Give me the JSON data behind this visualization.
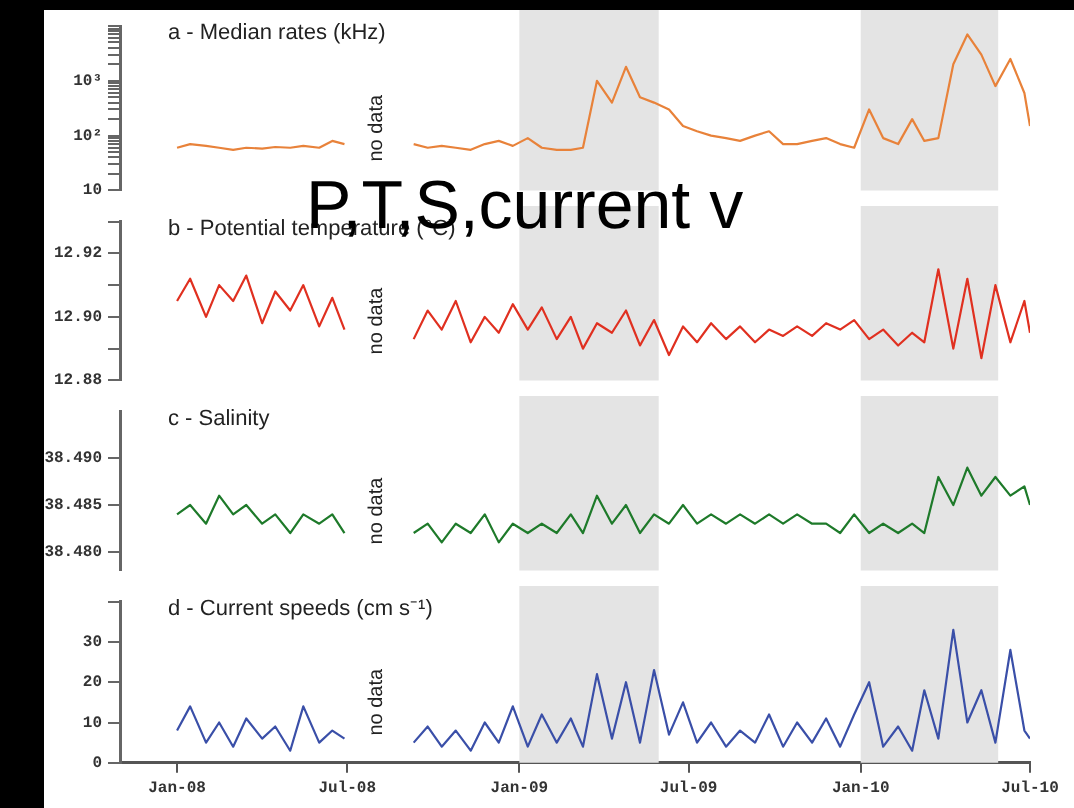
{
  "chart_data": [
    {
      "type": "line",
      "title": "a - Median rates (kHz)",
      "log": "y",
      "color": "#e8823a",
      "tick_labels": "y",
      "xlim": [
        "2007-11-01",
        "2010-07-01"
      ],
      "subtitle": "P,T,S,current v",
      "annotations": [
        "no data"
      ],
      "bands": [
        {
          "axis": "x",
          "from": "2009-01-01",
          "to": "2009-05-30",
          "color": "#e4e4e4"
        },
        {
          "axis": "x",
          "from": "2010-01-01",
          "to": "2010-05-28",
          "color": "#e4e4e4"
        }
      ],
      "ylim": [
        10,
        10000
      ],
      "yticks": [
        10,
        {
          "value": 20,
          "label": null
        },
        {
          "value": 30,
          "label": null
        },
        {
          "value": 40,
          "label": null
        },
        {
          "value": 50,
          "label": null
        },
        {
          "value": 60,
          "label": null
        },
        {
          "value": 70,
          "label": null
        },
        {
          "value": 80,
          "label": null
        },
        {
          "value": 90,
          "label": null
        },
        {
          "value": 100,
          "label": "10²"
        },
        {
          "value": 200,
          "label": null
        },
        {
          "value": 300,
          "label": null
        },
        {
          "value": 400,
          "label": null
        },
        {
          "value": 500,
          "label": null
        },
        {
          "value": 600,
          "label": null
        },
        {
          "value": 700,
          "label": null
        },
        {
          "value": 800,
          "label": null
        },
        {
          "value": 900,
          "label": null
        },
        {
          "value": 1000,
          "label": "10³"
        },
        {
          "value": 2000,
          "label": null
        },
        {
          "value": 3000,
          "label": null
        },
        {
          "value": 4000,
          "label": null
        },
        {
          "value": 5000,
          "label": null
        },
        {
          "value": 6000,
          "label": null
        },
        {
          "value": 7000,
          "label": null
        },
        {
          "value": 8000,
          "label": null
        },
        {
          "value": 9000,
          "label": null
        },
        {
          "value": 10000,
          "label": null
        }
      ],
      "x": [
        "2008-01-01",
        "2008-01-15",
        "2008-02-01",
        "2008-02-15",
        "2008-03-01",
        "2008-03-15",
        "2008-04-01",
        "2008-04-15",
        "2008-05-01",
        "2008-05-15",
        "2008-06-01",
        "2008-06-15",
        "2008-06-28",
        "2008-08-01",
        "2008-09-10",
        "2008-09-25",
        "2008-10-10",
        "2008-10-25",
        "2008-11-10",
        "2008-11-25",
        "2008-12-10",
        "2008-12-25",
        "2009-01-10",
        "2009-01-25",
        "2009-02-10",
        "2009-02-25",
        "2009-03-10",
        "2009-03-25",
        "2009-04-10",
        "2009-04-25",
        "2009-05-10",
        "2009-05-25",
        "2009-06-10",
        "2009-06-25",
        "2009-07-10",
        "2009-07-25",
        "2009-08-10",
        "2009-08-25",
        "2009-09-10",
        "2009-09-25",
        "2009-10-10",
        "2009-10-25",
        "2009-11-10",
        "2009-11-25",
        "2009-12-10",
        "2009-12-25",
        "2010-01-10",
        "2010-01-25",
        "2010-02-10",
        "2010-02-25",
        "2010-03-10",
        "2010-03-25",
        "2010-04-10",
        "2010-04-25",
        "2010-05-10",
        "2010-05-25",
        "2010-06-10",
        "2010-06-25",
        "2010-07-01"
      ],
      "values": [
        60,
        70,
        65,
        60,
        55,
        60,
        58,
        62,
        60,
        65,
        60,
        80,
        70,
        null,
        70,
        60,
        65,
        60,
        55,
        70,
        80,
        65,
        90,
        60,
        55,
        55,
        60,
        1000,
        400,
        1800,
        500,
        400,
        300,
        150,
        120,
        100,
        90,
        80,
        100,
        120,
        70,
        70,
        80,
        90,
        70,
        60,
        300,
        90,
        70,
        200,
        80,
        90,
        2000,
        7000,
        3000,
        800,
        2500,
        600,
        150
      ]
    },
    {
      "type": "line",
      "title": "b - Potential temperature (°C)",
      "color": "#e03020",
      "tick_labels": "y",
      "annotations": [
        "no data"
      ],
      "bands": [
        {
          "axis": "x",
          "from": "2009-01-01",
          "to": "2009-05-30",
          "color": "#e4e4e4"
        },
        {
          "axis": "x",
          "from": "2010-01-01",
          "to": "2010-05-28",
          "color": "#e4e4e4"
        }
      ],
      "xlim": [
        "2007-11-01",
        "2010-07-01"
      ],
      "ylim": [
        12.88,
        12.93
      ],
      "yticks": [
        {
          "value": 12.88,
          "label": "12.88"
        },
        {
          "value": 12.89,
          "label": null
        },
        {
          "value": 12.9,
          "label": "12.90"
        },
        {
          "value": 12.91,
          "label": null
        },
        12.92,
        {
          "value": 12.93,
          "label": null
        }
      ],
      "x": [
        "2008-01-01",
        "2008-01-15",
        "2008-02-01",
        "2008-02-15",
        "2008-03-01",
        "2008-03-15",
        "2008-04-01",
        "2008-04-15",
        "2008-05-01",
        "2008-05-15",
        "2008-06-01",
        "2008-06-15",
        "2008-06-28",
        "2008-08-01",
        "2008-09-10",
        "2008-09-25",
        "2008-10-10",
        "2008-10-25",
        "2008-11-10",
        "2008-11-25",
        "2008-12-10",
        "2008-12-25",
        "2009-01-10",
        "2009-01-25",
        "2009-02-10",
        "2009-02-25",
        "2009-03-10",
        "2009-03-25",
        "2009-04-10",
        "2009-04-25",
        "2009-05-10",
        "2009-05-25",
        "2009-06-10",
        "2009-06-25",
        "2009-07-10",
        "2009-07-25",
        "2009-08-10",
        "2009-08-25",
        "2009-09-10",
        "2009-09-25",
        "2009-10-10",
        "2009-10-25",
        "2009-11-10",
        "2009-11-25",
        "2009-12-10",
        "2009-12-25",
        "2010-01-10",
        "2010-01-25",
        "2010-02-10",
        "2010-02-25",
        "2010-03-10",
        "2010-03-25",
        "2010-04-10",
        "2010-04-25",
        "2010-05-10",
        "2010-05-25",
        "2010-06-10",
        "2010-06-25",
        "2010-07-01"
      ],
      "values": [
        12.905,
        12.912,
        12.9,
        12.91,
        12.905,
        12.913,
        12.898,
        12.908,
        12.902,
        12.91,
        12.897,
        12.906,
        12.896,
        null,
        12.893,
        12.902,
        12.896,
        12.905,
        12.892,
        12.9,
        12.895,
        12.904,
        12.896,
        12.903,
        12.893,
        12.9,
        12.89,
        12.898,
        12.895,
        12.902,
        12.891,
        12.899,
        12.888,
        12.897,
        12.892,
        12.898,
        12.893,
        12.897,
        12.892,
        12.896,
        12.894,
        12.897,
        12.894,
        12.898,
        12.896,
        12.899,
        12.893,
        12.896,
        12.891,
        12.895,
        12.892,
        12.915,
        12.89,
        12.912,
        12.887,
        12.91,
        12.892,
        12.905,
        12.895
      ]
    },
    {
      "type": "line",
      "title": "c - Salinity",
      "color": "#1e7a2a",
      "tick_labels": "y",
      "annotations": [
        "no data"
      ],
      "bands": [
        {
          "axis": "x",
          "from": "2009-01-01",
          "to": "2009-05-30",
          "color": "#e4e4e4"
        },
        {
          "axis": "x",
          "from": "2010-01-01",
          "to": "2010-05-28",
          "color": "#e4e4e4"
        }
      ],
      "xlim": [
        "2007-11-01",
        "2010-07-01"
      ],
      "ylim": [
        38.478,
        38.495
      ],
      "yticks": [
        {
          "value": 38.48,
          "label": "38.480"
        },
        38.485,
        {
          "value": 38.49,
          "label": "38.490"
        }
      ],
      "x": [
        "2008-01-01",
        "2008-01-15",
        "2008-02-01",
        "2008-02-15",
        "2008-03-01",
        "2008-03-15",
        "2008-04-01",
        "2008-04-15",
        "2008-05-01",
        "2008-05-15",
        "2008-06-01",
        "2008-06-15",
        "2008-06-28",
        "2008-08-01",
        "2008-09-10",
        "2008-09-25",
        "2008-10-10",
        "2008-10-25",
        "2008-11-10",
        "2008-11-25",
        "2008-12-10",
        "2008-12-25",
        "2009-01-10",
        "2009-01-25",
        "2009-02-10",
        "2009-02-25",
        "2009-03-10",
        "2009-03-25",
        "2009-04-10",
        "2009-04-25",
        "2009-05-10",
        "2009-05-25",
        "2009-06-10",
        "2009-06-25",
        "2009-07-10",
        "2009-07-25",
        "2009-08-10",
        "2009-08-25",
        "2009-09-10",
        "2009-09-25",
        "2009-10-10",
        "2009-10-25",
        "2009-11-10",
        "2009-11-25",
        "2009-12-10",
        "2009-12-25",
        "2010-01-10",
        "2010-01-25",
        "2010-02-10",
        "2010-02-25",
        "2010-03-10",
        "2010-03-25",
        "2010-04-10",
        "2010-04-25",
        "2010-05-10",
        "2010-05-25",
        "2010-06-10",
        "2010-06-25",
        "2010-07-01"
      ],
      "values": [
        38.484,
        38.485,
        38.483,
        38.486,
        38.484,
        38.485,
        38.483,
        38.484,
        38.482,
        38.484,
        38.483,
        38.484,
        38.482,
        null,
        38.482,
        38.483,
        38.481,
        38.483,
        38.482,
        38.484,
        38.481,
        38.483,
        38.482,
        38.483,
        38.482,
        38.484,
        38.482,
        38.486,
        38.483,
        38.485,
        38.482,
        38.484,
        38.483,
        38.485,
        38.483,
        38.484,
        38.483,
        38.484,
        38.483,
        38.484,
        38.483,
        38.484,
        38.483,
        38.483,
        38.482,
        38.484,
        38.482,
        38.483,
        38.482,
        38.483,
        38.482,
        38.488,
        38.485,
        38.489,
        38.486,
        38.488,
        38.486,
        38.487,
        38.485
      ]
    },
    {
      "type": "line",
      "title": "d - Current speeds (cm s⁻¹)",
      "color": "#3a4fa8",
      "annotations": [
        "no data"
      ],
      "bands": [
        {
          "axis": "x",
          "from": "2009-01-01",
          "to": "2009-05-30",
          "color": "#e4e4e4"
        },
        {
          "axis": "x",
          "from": "2010-01-01",
          "to": "2010-05-28",
          "color": "#e4e4e4"
        }
      ],
      "xlim": [
        "2007-11-01",
        "2010-07-01"
      ],
      "ylim": [
        0,
        40
      ],
      "xticks": [
        {
          "value": "2008-01-01",
          "label": "Jan-08"
        },
        {
          "value": "2008-07-01",
          "label": "Jul-08"
        },
        {
          "value": "2009-01-01",
          "label": "Jan-09"
        },
        {
          "value": "2009-07-01",
          "label": "Jul-09"
        },
        {
          "value": "2010-01-01",
          "label": "Jan-10"
        },
        {
          "value": "2010-07-01",
          "label": "Jul-10"
        }
      ],
      "yticks": [
        0,
        10,
        20,
        30,
        {
          "value": 40,
          "label": null
        }
      ],
      "x": [
        "2008-01-01",
        "2008-01-15",
        "2008-02-01",
        "2008-02-15",
        "2008-03-01",
        "2008-03-15",
        "2008-04-01",
        "2008-04-15",
        "2008-05-01",
        "2008-05-15",
        "2008-06-01",
        "2008-06-15",
        "2008-06-28",
        "2008-08-01",
        "2008-09-10",
        "2008-09-25",
        "2008-10-10",
        "2008-10-25",
        "2008-11-10",
        "2008-11-25",
        "2008-12-10",
        "2008-12-25",
        "2009-01-10",
        "2009-01-25",
        "2009-02-10",
        "2009-02-25",
        "2009-03-10",
        "2009-03-25",
        "2009-04-10",
        "2009-04-25",
        "2009-05-10",
        "2009-05-25",
        "2009-06-10",
        "2009-06-25",
        "2009-07-10",
        "2009-07-25",
        "2009-08-10",
        "2009-08-25",
        "2009-09-10",
        "2009-09-25",
        "2009-10-10",
        "2009-10-25",
        "2009-11-10",
        "2009-11-25",
        "2009-12-10",
        "2009-12-25",
        "2010-01-10",
        "2010-01-25",
        "2010-02-10",
        "2010-02-25",
        "2010-03-10",
        "2010-03-25",
        "2010-04-10",
        "2010-04-25",
        "2010-05-10",
        "2010-05-25",
        "2010-06-10",
        "2010-06-25",
        "2010-07-01"
      ],
      "values": [
        8,
        14,
        5,
        10,
        4,
        11,
        6,
        9,
        3,
        14,
        5,
        8,
        6,
        null,
        5,
        9,
        4,
        8,
        3,
        10,
        5,
        14,
        4,
        12,
        5,
        11,
        4,
        22,
        6,
        20,
        5,
        23,
        7,
        15,
        5,
        10,
        4,
        8,
        5,
        12,
        4,
        10,
        5,
        11,
        4,
        12,
        20,
        4,
        9,
        3,
        18,
        6,
        33,
        10,
        18,
        5,
        28,
        8,
        6
      ]
    }
  ]
}
